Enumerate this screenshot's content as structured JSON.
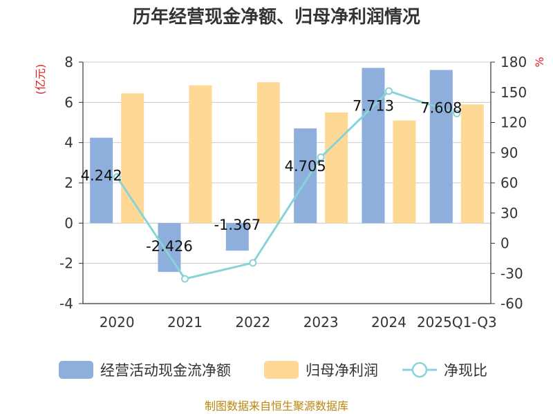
{
  "chart_data": {
    "type": "bar",
    "title": "历年经营现金净额、归母净利润情况",
    "categories": [
      "2020",
      "2021",
      "2022",
      "2023",
      "2024",
      "2025Q1-Q3"
    ],
    "series": [
      {
        "name": "经营活动现金流净额",
        "kind": "bar",
        "axis": "left",
        "color": "#8eaedb",
        "values": [
          4.242,
          -2.426,
          -1.367,
          4.705,
          7.713,
          7.608
        ],
        "labels": [
          "4.242",
          "-2.426",
          "-1.367",
          "4.705",
          "7.713",
          "7.608"
        ]
      },
      {
        "name": "归母净利润",
        "kind": "bar",
        "axis": "left",
        "color": "#fed895",
        "values": [
          6.45,
          6.85,
          7.0,
          5.5,
          5.1,
          5.9
        ]
      },
      {
        "name": "净现比",
        "kind": "line",
        "axis": "right",
        "color": "#88d3d8",
        "values": [
          65.8,
          -35.4,
          -19.5,
          85.5,
          151.2,
          128.9
        ]
      }
    ],
    "y_left": {
      "unit": "(亿元)",
      "min": -4,
      "max": 8,
      "ticks": [
        "8",
        "6",
        "4",
        "2",
        "0",
        "-2",
        "-4"
      ]
    },
    "y_right": {
      "unit": "%",
      "min": -60,
      "max": 180,
      "ticks": [
        "180",
        "150",
        "120",
        "90",
        "60",
        "30",
        "0",
        "-30",
        "-60"
      ]
    },
    "grid": true,
    "legend_position": "bottom"
  },
  "source": "制图数据来自恒生聚源数据库"
}
